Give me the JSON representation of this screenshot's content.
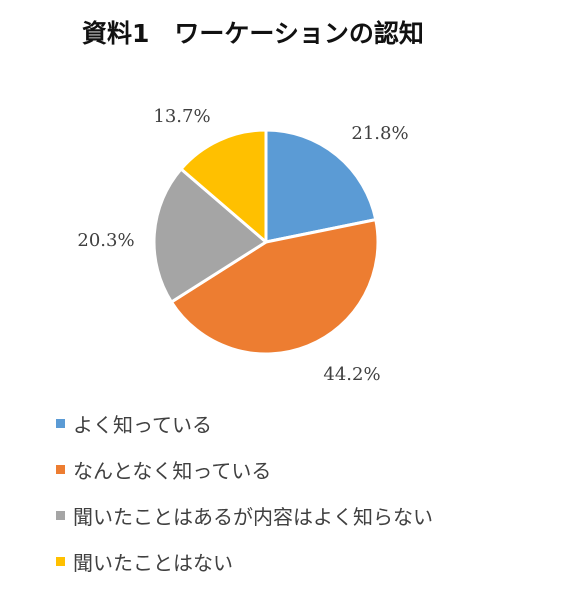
{
  "chart_data": {
    "type": "pie",
    "title": "資料1　ワーケーションの認知",
    "slices": [
      {
        "label": "よく知っている",
        "value": 21.8,
        "value_label": "21.8%",
        "color": "#5B9BD5"
      },
      {
        "label": "なんとなく知っている",
        "value": 44.2,
        "value_label": "44.2%",
        "color": "#ED7D31"
      },
      {
        "label": "聞いたことはあるが内容はよく知らない",
        "value": 20.3,
        "value_label": "20.3%",
        "color": "#A5A5A5"
      },
      {
        "label": "聞いたことはない",
        "value": 13.7,
        "value_label": "13.7%",
        "color": "#FFC000"
      }
    ],
    "start_angle": "12 o'clock",
    "direction": "clockwise",
    "legend_position": "bottom-left"
  }
}
